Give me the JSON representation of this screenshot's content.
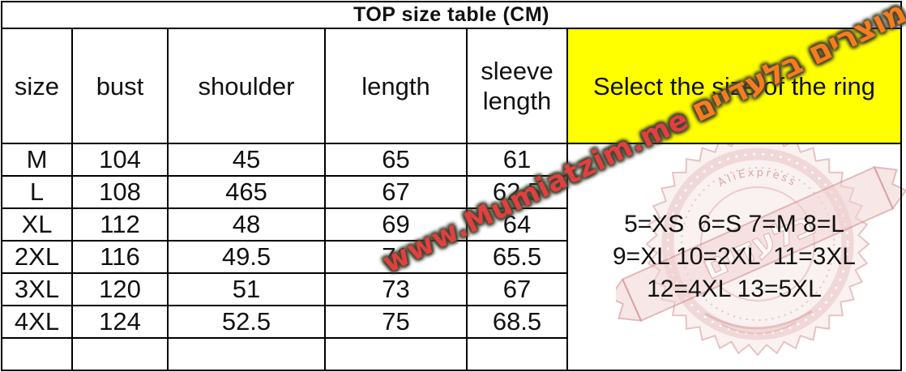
{
  "chart_data": {
    "type": "table",
    "title": "TOP size table (CM)",
    "columns": [
      "size",
      "bust",
      "shoulder",
      "length",
      "sleeve length"
    ],
    "rows": [
      [
        "M",
        "104",
        "45",
        "65",
        "61"
      ],
      [
        "L",
        "108",
        "465",
        "67",
        "62.5"
      ],
      [
        "XL",
        "112",
        "48",
        "69",
        "64"
      ],
      [
        "2XL",
        "116",
        "49.5",
        "71",
        "65.5"
      ],
      [
        "3XL",
        "120",
        "51",
        "73",
        "67"
      ],
      [
        "4XL",
        "124",
        "52.5",
        "75",
        "68.5"
      ],
      [
        "",
        "",
        "",
        "",
        ""
      ]
    ],
    "highlight_cell_text": "Select the size of the ring",
    "ring_size_legend": [
      "5=XS  6=S 7=M 8=L",
      "9=XL 10=2XL  11=3XL",
      "12=4XL 13=5XL"
    ],
    "layout_hints": {
      "grid": "full black grid lines",
      "highlight_color": "#ffff00",
      "ring_legend_position": "merged right column, centered"
    }
  },
  "watermark": {
    "url_text": "www.Mumiatzim.me",
    "hebrew_text": "לעוד מוצרים בלעדיים"
  },
  "stamp": {
    "brand_arc_text": "AliExpress",
    "ribbon_text": "בלעדים"
  },
  "colors": {
    "highlight_yellow": "#ffff00",
    "watermark_red": "#e04040",
    "watermark_orange": "#f57d1f",
    "watermark_outline": "#424634",
    "stamp_pink": "#c87c7c",
    "table_line": "#000000"
  }
}
